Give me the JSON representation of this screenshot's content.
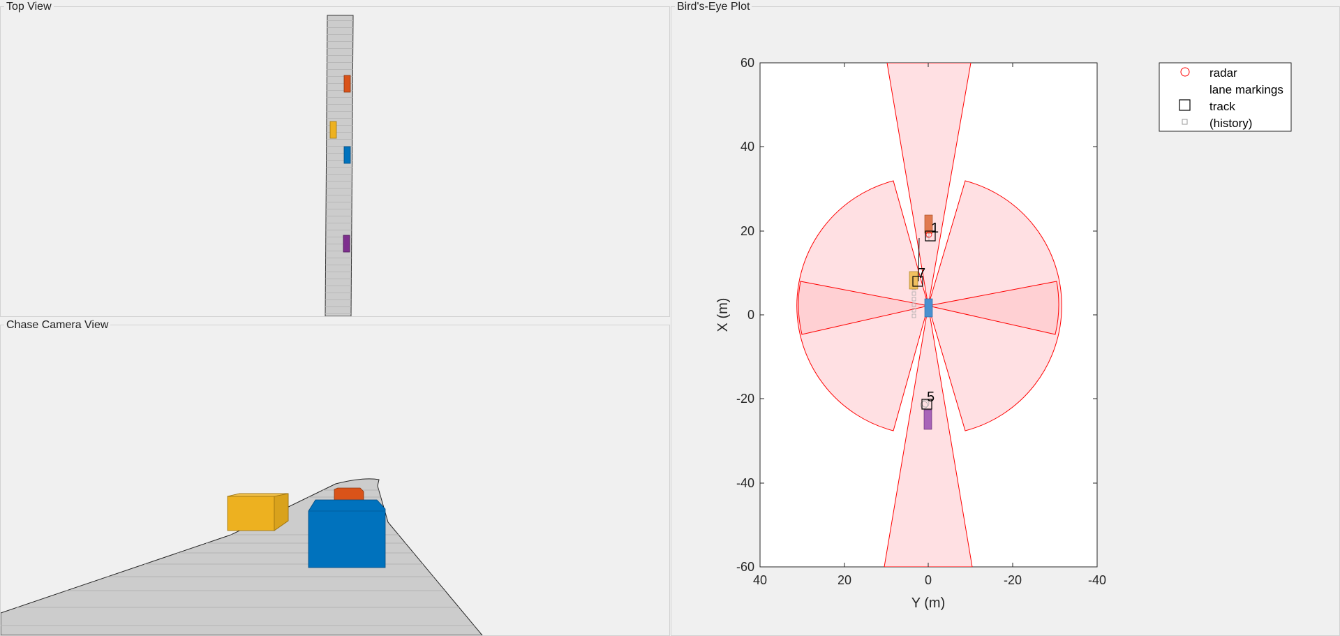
{
  "panels": {
    "top_view": {
      "title": "Top View"
    },
    "chase_view": {
      "title": "Chase Camera View"
    },
    "birds_eye": {
      "title": "Bird's-Eye Plot"
    }
  },
  "colors": {
    "ego": "#0072bd",
    "orange": "#d95319",
    "yellow": "#edb120",
    "purple": "#7e2f8e",
    "road": "#cccccc",
    "radar_edge": "#ff0000",
    "radar_fill": "#ffe0e3"
  },
  "plot": {
    "xlabel": "Y (m)",
    "ylabel": "X (m)",
    "xlim": [
      40,
      -40
    ],
    "ylim": [
      -60,
      60
    ],
    "xticks": [
      "40",
      "20",
      "0",
      "-20",
      "-40"
    ],
    "yticks": [
      "60",
      "40",
      "20",
      "0",
      "-20",
      "-40",
      "-60"
    ],
    "legend": {
      "placement": "outside-top-right",
      "items": [
        {
          "label": "radar",
          "marker": "circle-red"
        },
        {
          "label": "lane markings",
          "marker": "none"
        },
        {
          "label": "track",
          "marker": "square-black"
        },
        {
          "label": "(history)",
          "marker": "small-square-gray"
        }
      ]
    },
    "track_labels": [
      "1",
      "7",
      "5"
    ]
  }
}
